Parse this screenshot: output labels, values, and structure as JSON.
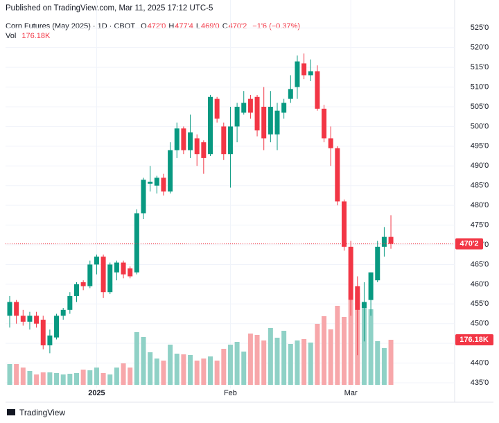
{
  "published": "Published on TradingView.com, Mar 11, 2025 17:12 UTC-5",
  "brand": "TradingView",
  "chart_data": {
    "type": "candlestick",
    "title": "Corn Futures (May 2025) · 1D · CBOT",
    "legend": {
      "o_key": "O",
      "o": "472'0",
      "h_key": "H",
      "h": "477'4",
      "l_key": "L",
      "l": "469'0",
      "c_key": "C",
      "c": "470'2",
      "change": "−1'6 (−0.37%)",
      "vol_key": "Vol",
      "vol": "176.18K"
    },
    "last_price_label": "470'2",
    "volume_label": "176.18K",
    "up_color": "#089981",
    "down_color": "#f23645",
    "volume_up_color": "#8fd1c6",
    "volume_down_color": "#f7a7aa",
    "categories": [
      null,
      null,
      null,
      null,
      null,
      null,
      null,
      null,
      null,
      null,
      null,
      null,
      null,
      "2025",
      null,
      null,
      null,
      null,
      null,
      null,
      null,
      null,
      null,
      null,
      null,
      null,
      null,
      null,
      null,
      null,
      null,
      null,
      null,
      "Feb",
      null,
      null,
      null,
      null,
      null,
      null,
      null,
      null,
      null,
      null,
      null,
      null,
      null,
      null,
      null,
      null,
      null,
      "Mar",
      null,
      null,
      null,
      null,
      null,
      null
    ],
    "open": [
      452,
      455.5,
      452,
      450.5,
      452,
      451,
      444.5,
      446.5,
      452,
      453.5,
      457,
      460.5,
      459.5,
      465,
      467,
      458,
      463,
      465.5,
      464,
      463,
      478,
      485.5,
      485,
      487,
      483.5,
      494,
      499.5,
      494,
      497,
      496,
      493,
      507,
      500,
      493,
      500,
      503.5,
      507,
      507.5,
      505,
      498,
      498,
      503.5,
      507,
      510,
      516,
      513,
      514,
      504.5,
      497,
      494.5,
      481,
      469.5,
      459.5,
      454,
      456,
      461,
      469.5,
      472
    ],
    "high": [
      457,
      456,
      453.5,
      453,
      453,
      452,
      448.5,
      452.5,
      454,
      458,
      460.5,
      461,
      466,
      467.5,
      467.5,
      465.5,
      466,
      466,
      464.5,
      479,
      487,
      490,
      487.5,
      488,
      496,
      501,
      500,
      503,
      498,
      496.5,
      508,
      507.5,
      501,
      505,
      506,
      509,
      508,
      508,
      510,
      509,
      506,
      507,
      513,
      518,
      518.5,
      517,
      515.5,
      505.5,
      500,
      495,
      481.5,
      471,
      462,
      460.5,
      463,
      471,
      474.5,
      477.5
    ],
    "low": [
      449,
      450,
      449.5,
      448.5,
      449,
      443.5,
      442.5,
      446,
      451,
      452.5,
      455.5,
      458.5,
      459,
      462.5,
      456.5,
      457.5,
      461,
      461.5,
      461.5,
      462.5,
      476.5,
      483.5,
      483,
      482.5,
      483,
      492,
      493,
      492,
      490,
      488,
      492.5,
      501,
      491.5,
      484.5,
      496,
      503,
      502,
      497.5,
      494,
      496,
      494,
      502,
      506,
      507,
      512,
      511.5,
      504,
      496,
      490,
      480,
      468.5,
      452,
      442,
      445.5,
      452,
      460.5,
      467,
      469
    ],
    "close": [
      455.5,
      452,
      450.5,
      452,
      450,
      444.5,
      447,
      452,
      453.5,
      457,
      460,
      459.5,
      465,
      467,
      458,
      465,
      465.5,
      462.5,
      462,
      478,
      486.5,
      486,
      487,
      483.5,
      494,
      499.5,
      494,
      498.5,
      493,
      492,
      507.5,
      502,
      493,
      500,
      505,
      506,
      503.5,
      499,
      497,
      505,
      504,
      506,
      509.5,
      516.5,
      513,
      514,
      504.5,
      497,
      494.5,
      481,
      469.5,
      456,
      453.5,
      455.5,
      463,
      469.5,
      472,
      470.25
    ],
    "volume": [
      81300,
      81300,
      67750,
      54200,
      40650,
      48780,
      48780,
      46070,
      40650,
      43360,
      46070,
      59620,
      56910,
      67750,
      46070,
      40650,
      67750,
      84010,
      67750,
      205960,
      186990,
      127370,
      102980,
      94850,
      157180,
      121950,
      119240,
      116530,
      94850,
      102980,
      111110,
      94850,
      140920,
      157180,
      168020,
      130080,
      200540,
      195120,
      173440,
      222220,
      184280,
      211380,
      159890,
      173440,
      178860,
      165310,
      238480,
      268290,
      216800,
      308940,
      265580,
      330620,
      360430,
      319780,
      295390,
      170730,
      143630,
      176180
    ],
    "ylim": [
      433.6,
      526.8
    ],
    "yticks": [
      {
        "value": 435,
        "label": "435'0"
      },
      {
        "value": 440,
        "label": "440'0"
      },
      {
        "value": 445,
        "label": "445'0"
      },
      {
        "value": 450,
        "label": "450'0"
      },
      {
        "value": 455,
        "label": "455'0"
      },
      {
        "value": 460,
        "label": "460'0"
      },
      {
        "value": 465,
        "label": "465'0"
      },
      {
        "value": 470,
        "label": "470'0"
      },
      {
        "value": 475,
        "label": "475'0"
      },
      {
        "value": 480,
        "label": "480'0"
      },
      {
        "value": 485,
        "label": "485'0"
      },
      {
        "value": 490,
        "label": "490'0"
      },
      {
        "value": 495,
        "label": "495'0"
      },
      {
        "value": 500,
        "label": "500'0"
      },
      {
        "value": 505,
        "label": "505'0"
      },
      {
        "value": 510,
        "label": "510'0"
      },
      {
        "value": 515,
        "label": "515'0"
      },
      {
        "value": 520,
        "label": "520'0"
      },
      {
        "value": 525,
        "label": "525'0"
      }
    ],
    "grid": true
  }
}
